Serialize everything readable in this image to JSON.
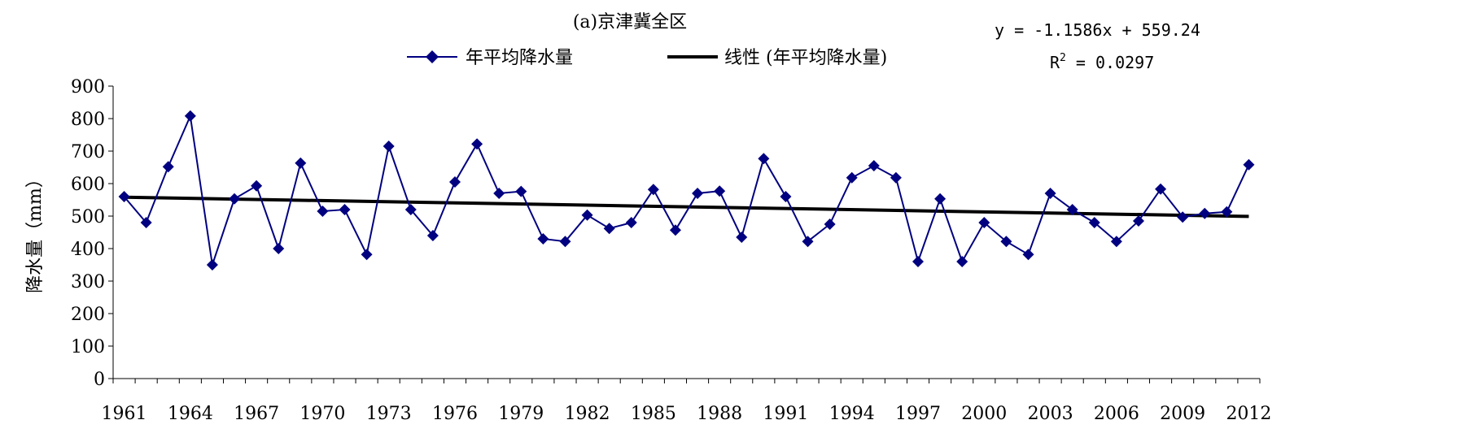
{
  "chart_data": {
    "type": "line",
    "title": "(a)京津冀全区",
    "ylabel": "降水量（mm）",
    "xlabel": "",
    "ylim": [
      0,
      900
    ],
    "yticks": [
      "0",
      "100",
      "200",
      "300",
      "400",
      "500",
      "600",
      "700",
      "800",
      "900"
    ],
    "xticks": [
      "1961",
      "1964",
      "1967",
      "1970",
      "1973",
      "1976",
      "1979",
      "1982",
      "1985",
      "1988",
      "1991",
      "1994",
      "1997",
      "2000",
      "2003",
      "2006",
      "2009",
      "2012"
    ],
    "grid": false,
    "legend_position": "top",
    "series": [
      {
        "name": "年平均降水量",
        "marker": "diamond",
        "color": "#000080",
        "x": [
          1961,
          1962,
          1963,
          1964,
          1965,
          1966,
          1967,
          1968,
          1969,
          1970,
          1971,
          1972,
          1973,
          1974,
          1975,
          1976,
          1977,
          1978,
          1979,
          1980,
          1981,
          1982,
          1983,
          1984,
          1985,
          1986,
          1987,
          1988,
          1989,
          1990,
          1991,
          1992,
          1993,
          1994,
          1995,
          1996,
          1997,
          1998,
          1999,
          2000,
          2001,
          2002,
          2003,
          2004,
          2005,
          2006,
          2007,
          2008,
          2009,
          2010,
          2011,
          2012
        ],
        "values": [
          560,
          480,
          652,
          808,
          350,
          553,
          593,
          400,
          663,
          515,
          520,
          382,
          715,
          520,
          440,
          605,
          722,
          570,
          576,
          430,
          422,
          503,
          462,
          480,
          582,
          457,
          570,
          577,
          435,
          677,
          560,
          422,
          475,
          618,
          655,
          618,
          360,
          553,
          360,
          480,
          422,
          382,
          570,
          520,
          480,
          422,
          485,
          583,
          497,
          508,
          513,
          658
        ]
      },
      {
        "name": "线性 (年平均降水量)",
        "color": "#000000",
        "x": [
          1961,
          2012
        ],
        "values": [
          558.08,
          499.01
        ]
      }
    ],
    "equation": "y = -1.1586x + 559.24",
    "r2": {
      "prefix": "R",
      "sup": "2",
      "rest": " = 0.0297"
    }
  }
}
